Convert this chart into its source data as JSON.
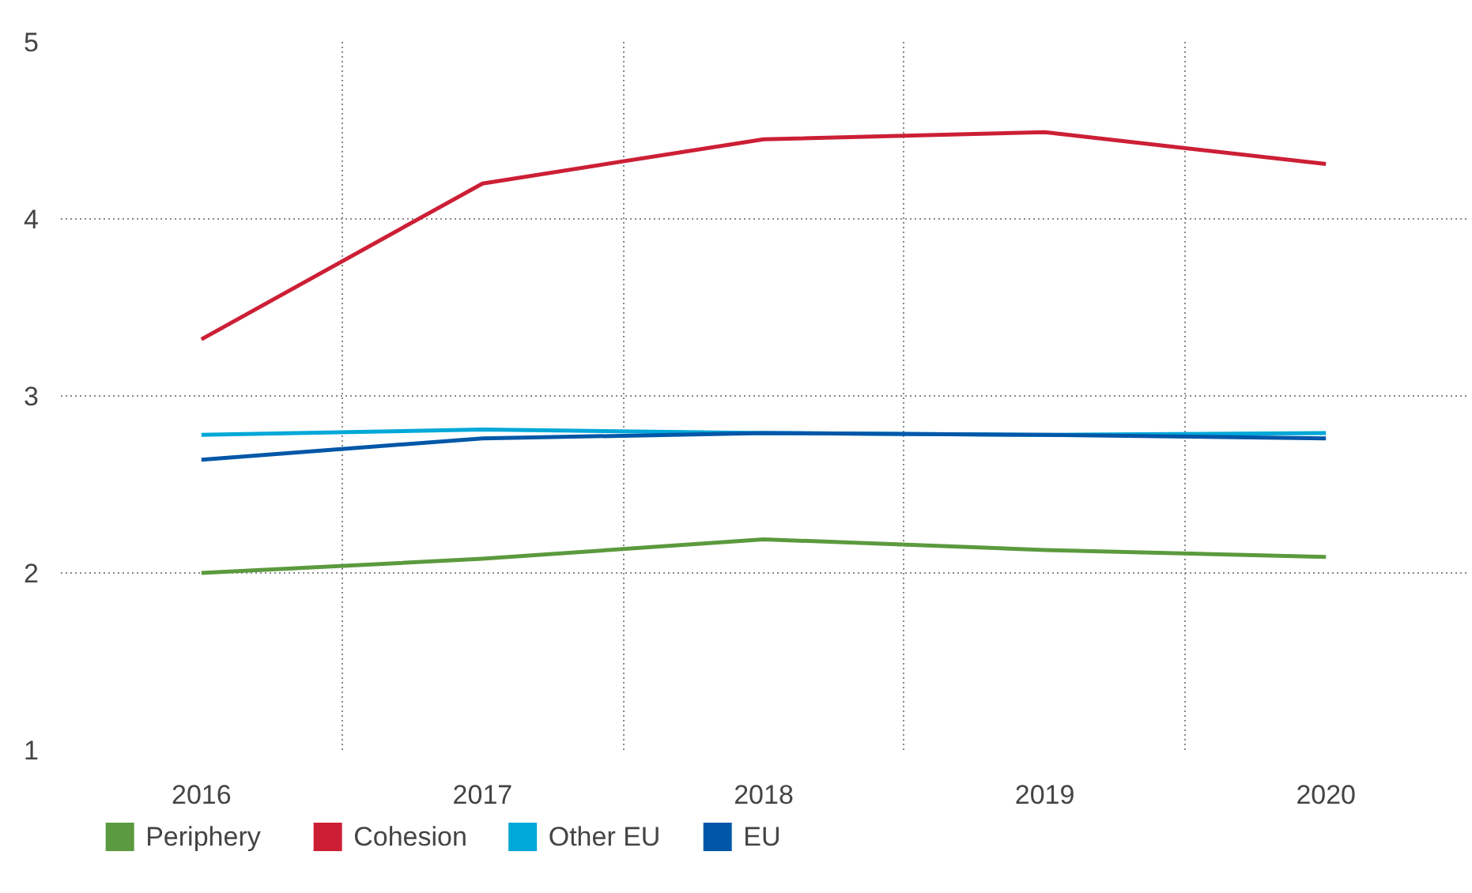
{
  "chart_data": {
    "type": "line",
    "categories": [
      "2016",
      "2017",
      "2018",
      "2019",
      "2020"
    ],
    "series": [
      {
        "name": "Periphery",
        "color": "#5b9a3e",
        "values": [
          2.0,
          2.08,
          2.19,
          2.13,
          2.09
        ]
      },
      {
        "name": "Cohesion",
        "color": "#cc1f36",
        "values": [
          3.32,
          4.2,
          4.45,
          4.49,
          4.31
        ]
      },
      {
        "name": "Other EU",
        "color": "#00a8d8",
        "values": [
          2.78,
          2.81,
          2.79,
          2.78,
          2.79
        ]
      },
      {
        "name": "EU",
        "color": "#0057a8",
        "values": [
          2.64,
          2.76,
          2.79,
          2.78,
          2.76
        ]
      }
    ],
    "ylim": [
      1,
      5
    ],
    "yticks": [
      1,
      2,
      3,
      4,
      5
    ],
    "grid": true,
    "legend": "bottom",
    "marker": "none",
    "line_style": "solid"
  }
}
